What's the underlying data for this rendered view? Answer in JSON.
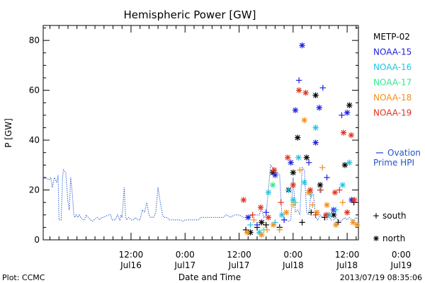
{
  "chart_data": {
    "type": "scatter",
    "title": "Hemispheric Power [GW]",
    "xlabel": "Date and Time",
    "ylabel": "P [GW]",
    "x_unit": "hours",
    "xlim": [
      -19.5,
      50.5
    ],
    "ylim": [
      0,
      86
    ],
    "y_ticks": [
      0,
      20,
      40,
      60,
      80
    ],
    "y_minor_step": 5,
    "x_ticks": [
      {
        "x": 0,
        "time": "12:00",
        "day": "Jul16"
      },
      {
        "x": 12,
        "time": "0:00",
        "day": "Jul17"
      },
      {
        "x": 24,
        "time": "12:00",
        "day": "Jul17"
      },
      {
        "x": 36,
        "time": "0:00",
        "day": "Jul18"
      },
      {
        "x": 48,
        "time": "12:00",
        "day": "Jul18"
      },
      {
        "x": 60,
        "time": "0:00",
        "day": "Jul19"
      }
    ],
    "footer_left": "Plot: CCMC",
    "footer_right": "2013/07/19 08:35:06",
    "legend_satellites": [
      {
        "name": "METP-02",
        "color": "#000000"
      },
      {
        "name": "NOAA-15",
        "color": "#1f1fdf"
      },
      {
        "name": "NOAA-16",
        "color": "#22c4e6"
      },
      {
        "name": "NOAA-17",
        "color": "#33e890"
      },
      {
        "name": "NOAA-18",
        "color": "#f0901a"
      },
      {
        "name": "NOAA-19",
        "color": "#e0321e"
      }
    ],
    "ovation_label_line1": "Ovation",
    "ovation_label_line2": "Prime HPI",
    "ovation_color": "#1f55cc",
    "marker_legend": [
      {
        "symbol": "+",
        "label": "south"
      },
      {
        "symbol": "*",
        "label": "north"
      }
    ],
    "ovation": {
      "x": [
        -19.5,
        -19,
        -18.2,
        -17.8,
        -17.5,
        -17,
        -16.5,
        -16.2,
        -16,
        -15.5,
        -15.2,
        -15,
        -14.5,
        -14,
        -13.7,
        -13.4,
        -13,
        -12.7,
        -12.5,
        -12.2,
        -11.8,
        -11.5,
        -11.2,
        -10.6,
        -10.3,
        -10,
        -9.5,
        -9,
        -8.5,
        -8.2,
        -7.5,
        -7,
        -6.5,
        -6.2,
        -5,
        -4.5,
        -4.2,
        -3.5,
        -3,
        -2.5,
        -2.2,
        -2,
        -1.5,
        -1.2,
        -1,
        -0.5,
        0,
        0.5,
        1,
        1.5,
        2,
        2.5,
        3,
        3.5,
        4,
        4.3,
        5,
        5.5,
        6,
        6.5,
        7,
        7.3,
        8,
        8.5,
        9,
        9.5,
        10,
        10.5,
        11,
        11.5,
        12,
        13,
        13.5,
        14,
        14.5,
        15,
        15.5,
        16,
        17,
        18,
        19,
        19.2,
        20,
        20.5,
        21,
        21.3,
        22,
        23,
        24,
        25,
        26,
        27,
        28,
        28.5,
        28.8,
        29,
        29.5,
        30,
        31,
        32,
        33,
        33.5,
        34,
        34.2,
        35,
        35.5,
        36,
        36.5,
        37,
        37.5,
        38,
        38.5,
        39,
        39.5,
        40,
        40.5,
        41,
        41.5,
        42,
        42.5,
        43,
        43.5,
        44,
        44.5,
        45,
        45.5,
        46,
        46.5,
        47,
        47.5,
        48,
        48.5,
        49,
        49.5,
        50,
        50.5
      ],
      "y": [
        24,
        25,
        24,
        25,
        21,
        25,
        23,
        26,
        8,
        8,
        25,
        28,
        27,
        15,
        12,
        25,
        18,
        10,
        9,
        10,
        9,
        10,
        9,
        8,
        8,
        10,
        9,
        8,
        7.5,
        8,
        9,
        8,
        9,
        9,
        10,
        10,
        8,
        8,
        10,
        8,
        10,
        9,
        21,
        9,
        8,
        9,
        8,
        8,
        9,
        8,
        8,
        12,
        11,
        15,
        10,
        9,
        9,
        11,
        21,
        15,
        10,
        9,
        9,
        8,
        8,
        8,
        8,
        8,
        8,
        7.5,
        8,
        8,
        8,
        8,
        8,
        8,
        9,
        9,
        9,
        9,
        9,
        9,
        9,
        9,
        10,
        10,
        9,
        10,
        10,
        9,
        9,
        10,
        10,
        10,
        12,
        12,
        9,
        10,
        30,
        28,
        26,
        10,
        9,
        8,
        7.5,
        8,
        25,
        11,
        12,
        10,
        29,
        28,
        11,
        10,
        20,
        18,
        9,
        8,
        10,
        9,
        9,
        8,
        9,
        8,
        8,
        9,
        8,
        7.5,
        8,
        9,
        8,
        9,
        8,
        8,
        9,
        8
      ]
    }
  }
}
